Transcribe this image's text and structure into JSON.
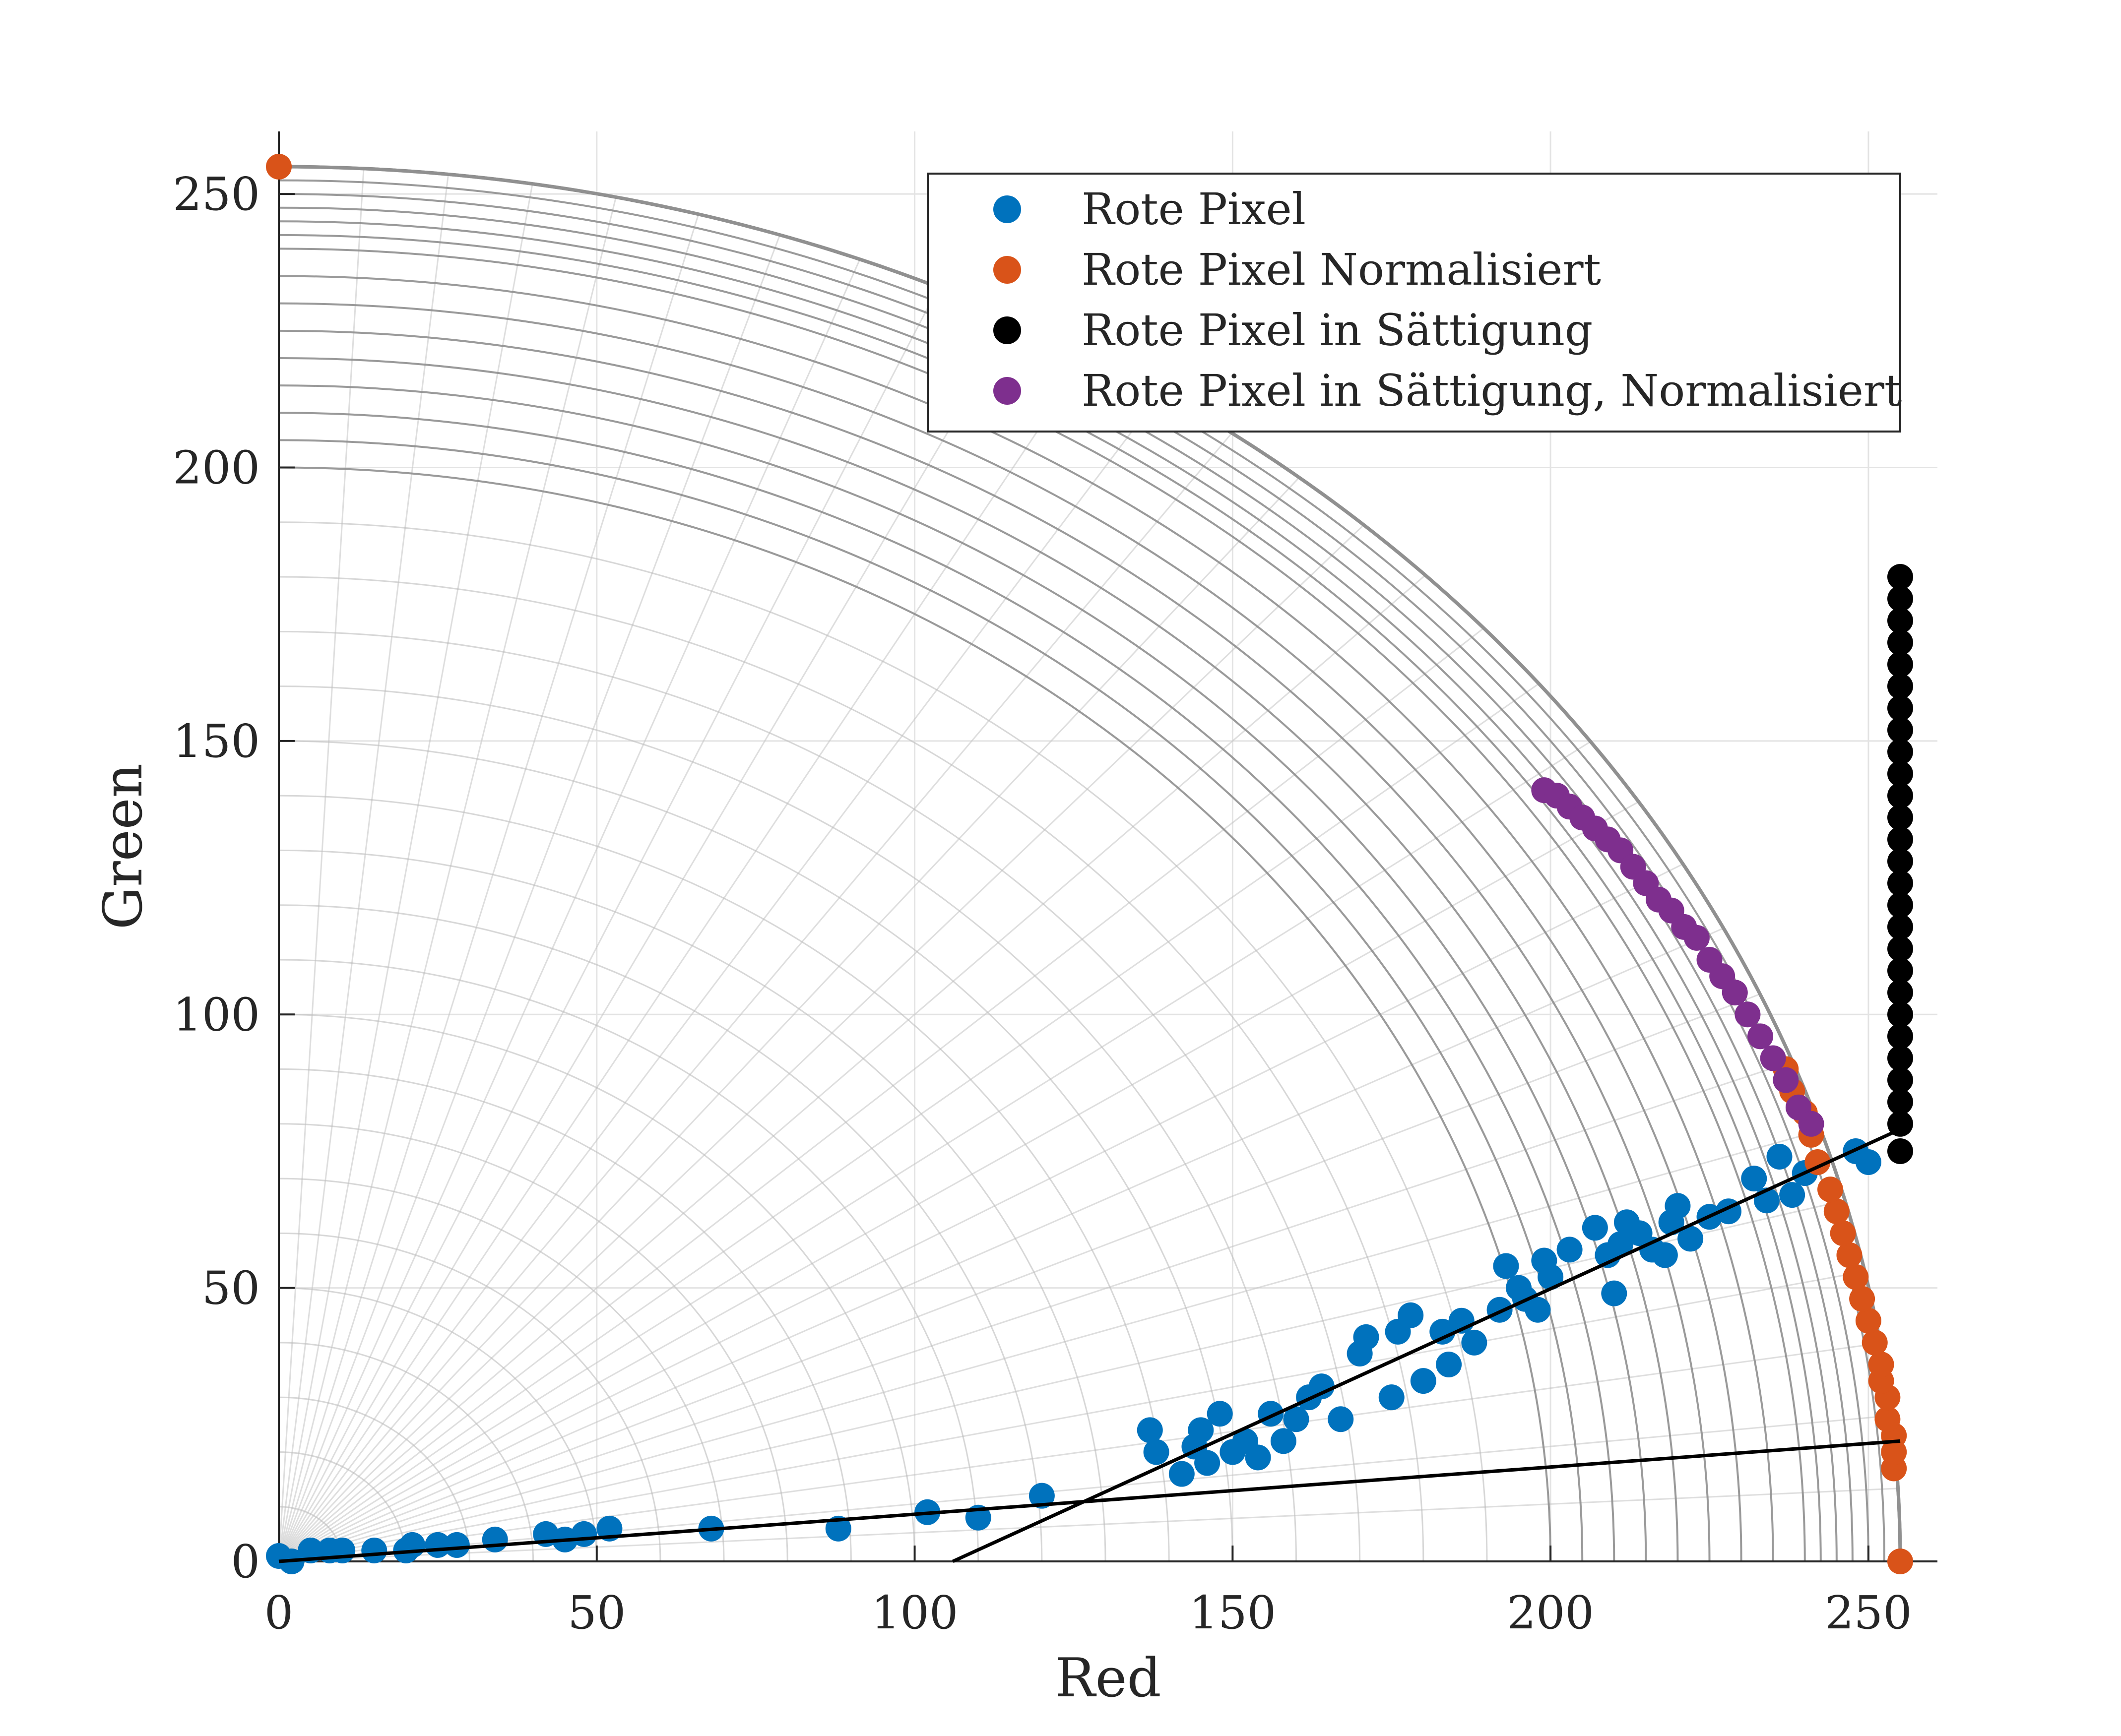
{
  "chart_data": {
    "type": "scatter",
    "xlabel": "Red",
    "ylabel": "Green",
    "xlim": [
      0,
      255
    ],
    "ylim": [
      0,
      255
    ],
    "xticks": [
      "0",
      "50",
      "100",
      "150",
      "200",
      "250"
    ],
    "yticks": [
      "0",
      "50",
      "100",
      "150",
      "200",
      "250"
    ],
    "grid": true,
    "legend": {
      "placement": "top-right",
      "entries": [
        "Rote Pixel",
        "Rote Pixel Normalisiert",
        "Rote Pixel in Sättigung",
        "Rote Pixel in Sättigung, Normalisiert"
      ]
    },
    "series_colors": [
      "#0072BD",
      "#D95319",
      "#000000",
      "#7E2F8E"
    ],
    "series": [
      {
        "name": "Rote Pixel",
        "color": "#0072BD",
        "points": [
          [
            0,
            1
          ],
          [
            2,
            0
          ],
          [
            5,
            2
          ],
          [
            8,
            2
          ],
          [
            10,
            2
          ],
          [
            15,
            2
          ],
          [
            20,
            2
          ],
          [
            21,
            3
          ],
          [
            25,
            3
          ],
          [
            28,
            3
          ],
          [
            34,
            4
          ],
          [
            42,
            5
          ],
          [
            45,
            4
          ],
          [
            48,
            5
          ],
          [
            52,
            6
          ],
          [
            68,
            6
          ],
          [
            88,
            6
          ],
          [
            102,
            9
          ],
          [
            110,
            8
          ],
          [
            120,
            12
          ],
          [
            137,
            24
          ],
          [
            138,
            20
          ],
          [
            142,
            16
          ],
          [
            144,
            21
          ],
          [
            145,
            24
          ],
          [
            146,
            18
          ],
          [
            148,
            27
          ],
          [
            150,
            20
          ],
          [
            152,
            22
          ],
          [
            154,
            19
          ],
          [
            156,
            27
          ],
          [
            158,
            22
          ],
          [
            160,
            26
          ],
          [
            162,
            30
          ],
          [
            164,
            32
          ],
          [
            167,
            26
          ],
          [
            170,
            38
          ],
          [
            171,
            41
          ],
          [
            175,
            30
          ],
          [
            176,
            42
          ],
          [
            178,
            45
          ],
          [
            180,
            33
          ],
          [
            183,
            42
          ],
          [
            184,
            36
          ],
          [
            186,
            44
          ],
          [
            188,
            40
          ],
          [
            192,
            46
          ],
          [
            193,
            54
          ],
          [
            195,
            50
          ],
          [
            196,
            48
          ],
          [
            198,
            46
          ],
          [
            199,
            55
          ],
          [
            200,
            52
          ],
          [
            203,
            57
          ],
          [
            207,
            61
          ],
          [
            209,
            56
          ],
          [
            210,
            49
          ],
          [
            211,
            58
          ],
          [
            212,
            62
          ],
          [
            214,
            60
          ],
          [
            216,
            57
          ],
          [
            218,
            56
          ],
          [
            219,
            62
          ],
          [
            220,
            65
          ],
          [
            222,
            59
          ],
          [
            225,
            63
          ],
          [
            228,
            64
          ],
          [
            232,
            70
          ],
          [
            234,
            66
          ],
          [
            236,
            74
          ],
          [
            238,
            67
          ],
          [
            240,
            71
          ],
          [
            248,
            75
          ],
          [
            250,
            73
          ]
        ]
      },
      {
        "name": "Rote Pixel Normalisiert",
        "color": "#D95319",
        "points": [
          [
            0,
            255
          ],
          [
            255,
            0
          ],
          [
            254,
            17
          ],
          [
            254,
            20
          ],
          [
            254,
            23
          ],
          [
            253,
            26
          ],
          [
            253,
            30
          ],
          [
            252,
            33
          ],
          [
            252,
            36
          ],
          [
            251,
            40
          ],
          [
            250,
            44
          ],
          [
            249,
            48
          ],
          [
            248,
            52
          ],
          [
            247,
            56
          ],
          [
            246,
            60
          ],
          [
            245,
            64
          ],
          [
            244,
            68
          ],
          [
            242,
            73
          ],
          [
            241,
            78
          ],
          [
            240,
            82
          ],
          [
            238,
            86
          ],
          [
            237,
            90
          ]
        ]
      },
      {
        "name": "Rote Pixel in Sättigung",
        "color": "#000000",
        "points": [
          [
            255,
            75
          ],
          [
            255,
            80
          ],
          [
            255,
            84
          ],
          [
            255,
            88
          ],
          [
            255,
            92
          ],
          [
            255,
            96
          ],
          [
            255,
            100
          ],
          [
            255,
            104
          ],
          [
            255,
            108
          ],
          [
            255,
            112
          ],
          [
            255,
            116
          ],
          [
            255,
            120
          ],
          [
            255,
            124
          ],
          [
            255,
            128
          ],
          [
            255,
            132
          ],
          [
            255,
            136
          ],
          [
            255,
            140
          ],
          [
            255,
            144
          ],
          [
            255,
            148
          ],
          [
            255,
            152
          ],
          [
            255,
            156
          ],
          [
            255,
            160
          ],
          [
            255,
            164
          ],
          [
            255,
            168
          ],
          [
            255,
            172
          ],
          [
            255,
            176
          ],
          [
            255,
            180
          ]
        ]
      },
      {
        "name": "Rote Pixel in Sättigung, Normalisiert",
        "color": "#7E2F8E",
        "points": [
          [
            199,
            141
          ],
          [
            201,
            140
          ],
          [
            203,
            138
          ],
          [
            205,
            136
          ],
          [
            207,
            134
          ],
          [
            209,
            132
          ],
          [
            211,
            130
          ],
          [
            213,
            127
          ],
          [
            215,
            124
          ],
          [
            217,
            121
          ],
          [
            219,
            119
          ],
          [
            221,
            116
          ],
          [
            223,
            114
          ],
          [
            225,
            110
          ],
          [
            227,
            107
          ],
          [
            229,
            104
          ],
          [
            231,
            100
          ],
          [
            233,
            96
          ],
          [
            235,
            92
          ],
          [
            237,
            88
          ],
          [
            239,
            83
          ],
          [
            241,
            80
          ]
        ]
      }
    ],
    "lines": [
      {
        "points": [
          [
            0,
            0
          ],
          [
            255,
            22
          ]
        ],
        "color": "#000000"
      },
      {
        "points": [
          [
            106,
            0
          ],
          [
            255,
            79
          ]
        ],
        "color": "#000000"
      }
    ]
  }
}
